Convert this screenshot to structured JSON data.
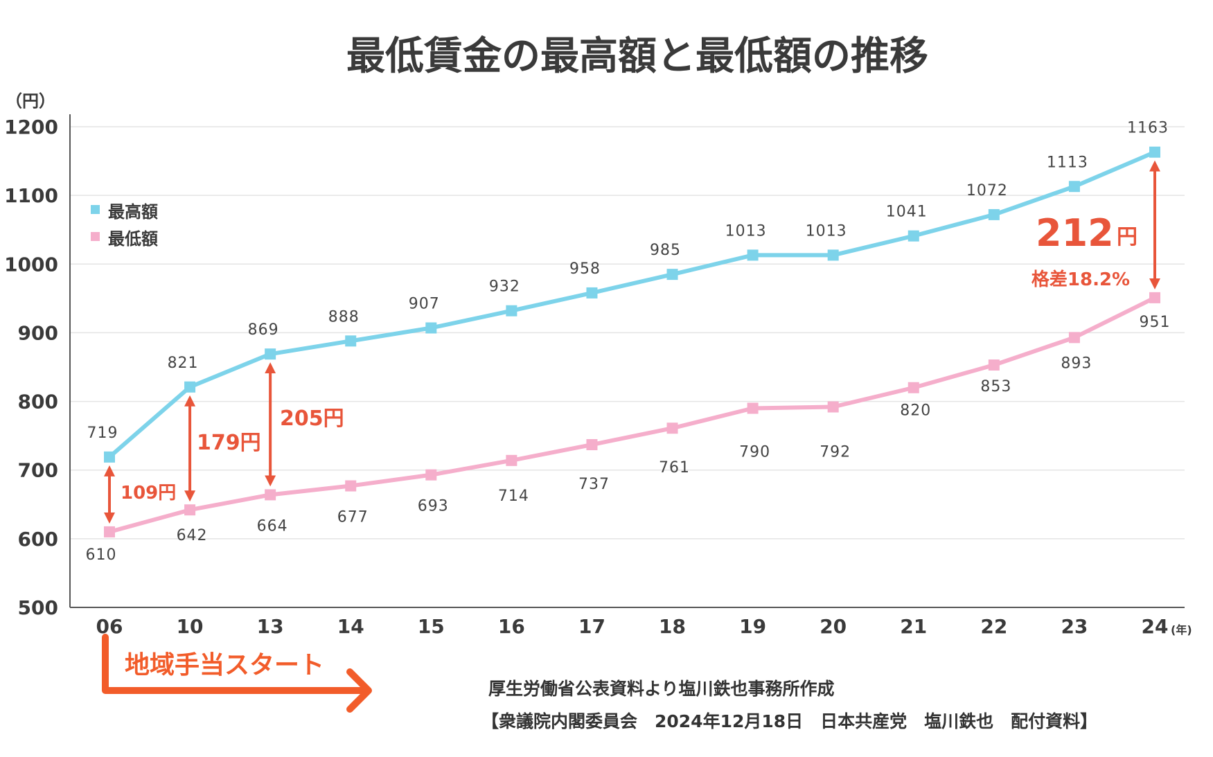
{
  "chart_data": {
    "type": "line",
    "title": "最低賃金の最高額と最低額の推移",
    "ylabel": "（円）",
    "xlabel": "(年)",
    "ylim": [
      500,
      1200
    ],
    "yticks": [
      500,
      600,
      700,
      800,
      900,
      1000,
      1100,
      1200
    ],
    "categories": [
      "06",
      "10",
      "13",
      "14",
      "15",
      "16",
      "17",
      "18",
      "19",
      "20",
      "21",
      "22",
      "23",
      "24"
    ],
    "grid": true,
    "legend_position": "top-left",
    "series": [
      {
        "name": "最高額",
        "color": "#7dd3ea",
        "values": [
          719,
          821,
          869,
          888,
          907,
          932,
          958,
          985,
          1013,
          1013,
          1041,
          1072,
          1113,
          1163
        ]
      },
      {
        "name": "最低額",
        "color": "#f5aecb",
        "values": [
          610,
          642,
          664,
          677,
          693,
          714,
          737,
          761,
          790,
          792,
          820,
          853,
          893,
          951
        ]
      }
    ],
    "annotations": {
      "gaps": [
        {
          "label": "109円",
          "category": "06",
          "from": 610,
          "to": 719
        },
        {
          "label": "179円",
          "category": "10",
          "from": 642,
          "to": 821
        },
        {
          "label": "205円",
          "category": "13",
          "from": 664,
          "to": 869
        }
      ],
      "last_gap": {
        "value": "212",
        "unit": "円",
        "sub": "格差18.2%",
        "from": 951,
        "to": 1163
      },
      "start_note": "地域手当スタート"
    },
    "arrow_color": "#e8553a",
    "source_lines": [
      "厚生労働省公表資料より塩川鉄也事務所作成",
      "【衆議院内閣委員会　2024年12月18日　日本共産党　塩川鉄也　配付資料】"
    ]
  }
}
